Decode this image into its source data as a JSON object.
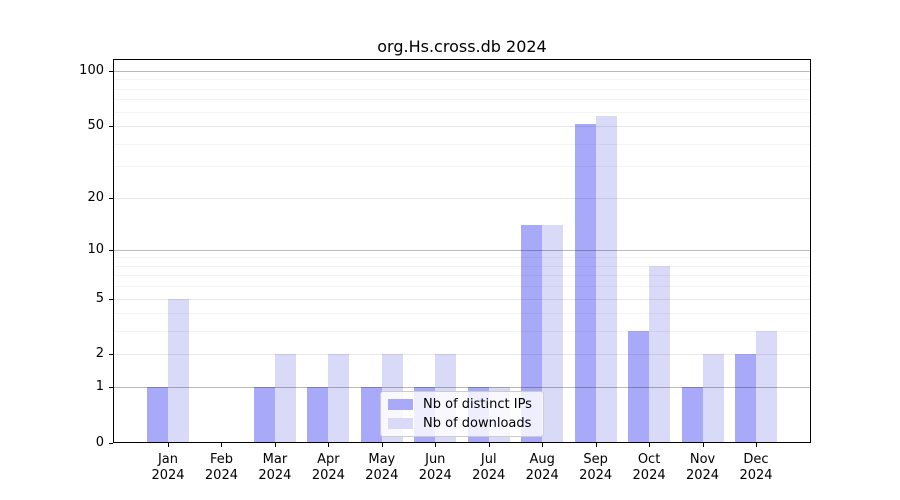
{
  "figure": {
    "title": "org.Hs.cross.db 2024"
  },
  "chart_data": {
    "type": "bar",
    "title": "org.Hs.cross.db 2024",
    "xlabel": "",
    "ylabel": "",
    "yscale": "log1p",
    "ylim": [
      0,
      116
    ],
    "grid": "on",
    "legend_position": "inset lower-center",
    "categories": [
      "Jan",
      "Feb",
      "Mar",
      "Apr",
      "May",
      "Jun",
      "Jul",
      "Aug",
      "Sep",
      "Oct",
      "Nov",
      "Dec"
    ],
    "category_year": "2024",
    "y_ticks": [
      0,
      1,
      2,
      5,
      10,
      20,
      50,
      100
    ],
    "y_ticks_emphasized": [
      1,
      10,
      100
    ],
    "y_ticks_minor": [
      3,
      4,
      6,
      7,
      8,
      9,
      30,
      40,
      60,
      70,
      80,
      90
    ],
    "series": [
      {
        "key": "distinct_ips",
        "name": "Nb of distinct IPs",
        "color": "#a9a9f9",
        "values": [
          1,
          0,
          1,
          1,
          1,
          1,
          1,
          14,
          51,
          3,
          1,
          2
        ]
      },
      {
        "key": "downloads",
        "name": "Nb of downloads",
        "color": "#d9d9f8",
        "values": [
          5,
          0,
          2,
          2,
          2,
          2,
          1,
          14,
          57,
          8,
          2,
          3
        ]
      }
    ],
    "colors": {
      "grid_emphasized": "rgba(0,0,0,0.27)",
      "grid_major": "rgba(0,0,0,0.085)",
      "grid_minor": "rgba(0,0,0,0.045)",
      "spine": "#000000"
    }
  }
}
